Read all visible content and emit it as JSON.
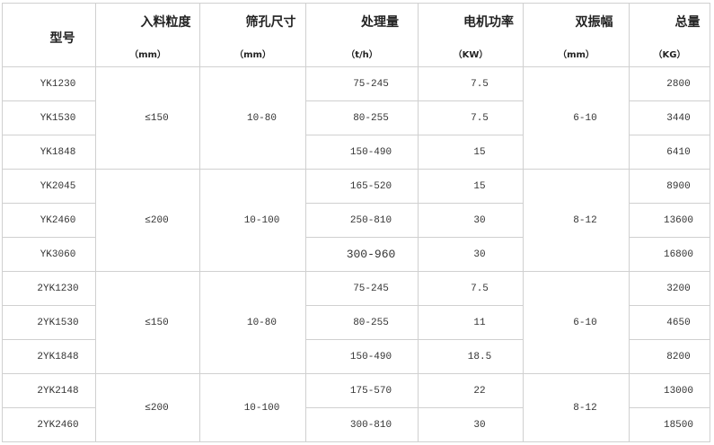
{
  "headers": [
    {
      "title": "型号",
      "unit": ""
    },
    {
      "title": "入料粒度",
      "unit": "（mm）"
    },
    {
      "title": "筛孔尺寸",
      "unit": "（mm）"
    },
    {
      "title": "处理量",
      "unit": "（t/h）"
    },
    {
      "title": "电机功率",
      "unit": "（KW）"
    },
    {
      "title": "双振幅",
      "unit": "（mm）"
    },
    {
      "title": "总量",
      "unit": "（KG）"
    }
  ],
  "rows": [
    {
      "model": "YK1230",
      "capacity": "75-245",
      "power": "7.5",
      "weight": "2800"
    },
    {
      "model": "YK1530",
      "capacity": "80-255",
      "power": "7.5",
      "weight": "3440"
    },
    {
      "model": "YK1848",
      "capacity": "150-490",
      "power": "15",
      "weight": "6410"
    },
    {
      "model": "YK2045",
      "capacity": "165-520",
      "power": "15",
      "weight": "8900"
    },
    {
      "model": "YK2460",
      "capacity": "250-810",
      "power": "30",
      "weight": "13600"
    },
    {
      "model": "YK3060",
      "capacity": "300-960",
      "power": "30",
      "weight": "16800"
    },
    {
      "model": "2YK1230",
      "capacity": "75-245",
      "power": "7.5",
      "weight": "3200"
    },
    {
      "model": "2YK1530",
      "capacity": "80-255",
      "power": "11",
      "weight": "4650"
    },
    {
      "model": "2YK1848",
      "capacity": "150-490",
      "power": "18.5",
      "weight": "8200"
    },
    {
      "model": "2YK2148",
      "capacity": "175-570",
      "power": "22",
      "weight": "13000"
    },
    {
      "model": "2YK2460",
      "capacity": "300-810",
      "power": "30",
      "weight": "18500"
    }
  ],
  "groups": [
    {
      "feed": "≤150",
      "mesh": "10-80",
      "amplitude": "6-10"
    },
    {
      "feed": "≤200",
      "mesh": "10-100",
      "amplitude": "8-12"
    },
    {
      "feed": "≤150",
      "mesh": "10-80",
      "amplitude": "6-10"
    },
    {
      "feed": "≤200",
      "mesh": "10-100",
      "amplitude": "8-12"
    }
  ]
}
